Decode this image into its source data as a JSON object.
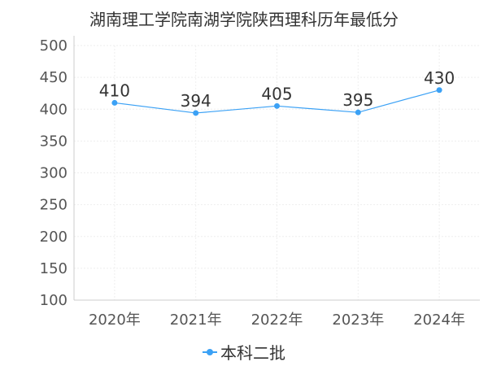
{
  "chart_data": {
    "type": "line",
    "title": "湖南理工学院南湖学院陕西理科历年最低分",
    "categories": [
      "2020年",
      "2021年",
      "2022年",
      "2023年",
      "2024年"
    ],
    "series": [
      {
        "name": "本科二批",
        "values": [
          410,
          394,
          405,
          395,
          430
        ],
        "color": "#3ba1f5"
      }
    ],
    "ylim": [
      100,
      500
    ],
    "yticks": [
      100,
      150,
      200,
      250,
      300,
      350,
      400,
      450,
      500
    ],
    "grid": true,
    "legend_position": "bottom-center"
  }
}
